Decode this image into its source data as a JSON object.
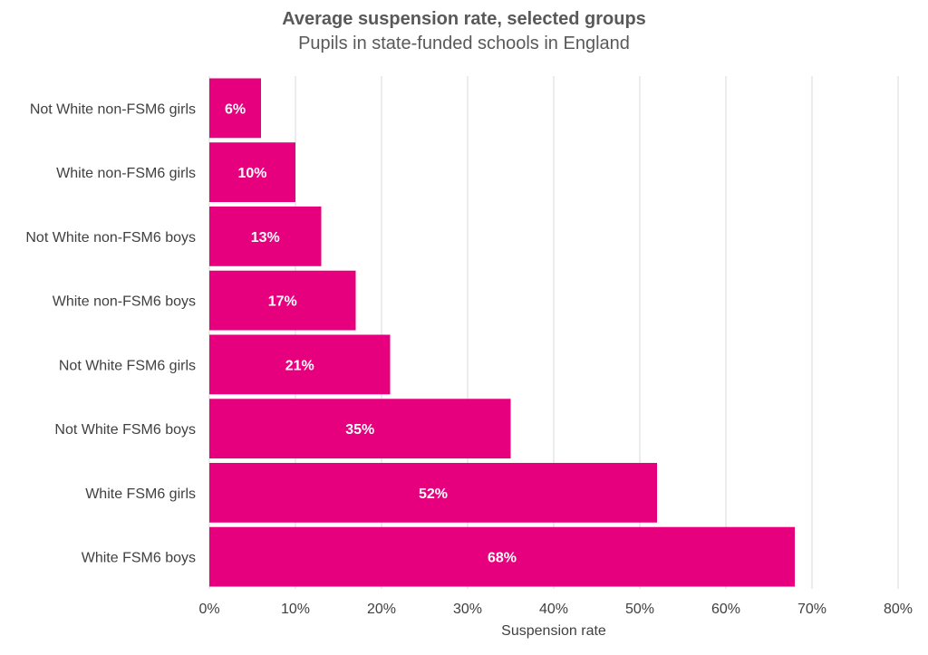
{
  "chart_data": {
    "type": "bar",
    "orientation": "horizontal",
    "title": "Average suspension rate, selected groups",
    "subtitle": "Pupils in state-funded schools in England",
    "xlabel": "Suspension rate",
    "ylabel": "",
    "categories": [
      "Not White non-FSM6 girls",
      "White non-FSM6 girls",
      "Not White non-FSM6 boys",
      "White non-FSM6 boys",
      "Not White FSM6 girls",
      "Not White FSM6 boys",
      "White FSM6 girls",
      "White FSM6 boys"
    ],
    "values": [
      6,
      10,
      13,
      17,
      21,
      35,
      52,
      68
    ],
    "data_labels": [
      "6%",
      "10%",
      "13%",
      "17%",
      "21%",
      "35%",
      "52%",
      "68%"
    ],
    "xlim": [
      0,
      80
    ],
    "xticks": [
      0,
      10,
      20,
      30,
      40,
      50,
      60,
      70,
      80
    ],
    "xtick_labels": [
      "0%",
      "10%",
      "20%",
      "30%",
      "40%",
      "50%",
      "60%",
      "70%",
      "80%"
    ],
    "grid": true,
    "legend": "none",
    "bar_color": "#e6007e",
    "grid_color": "#d9d9d9",
    "text_color": "#404040"
  }
}
